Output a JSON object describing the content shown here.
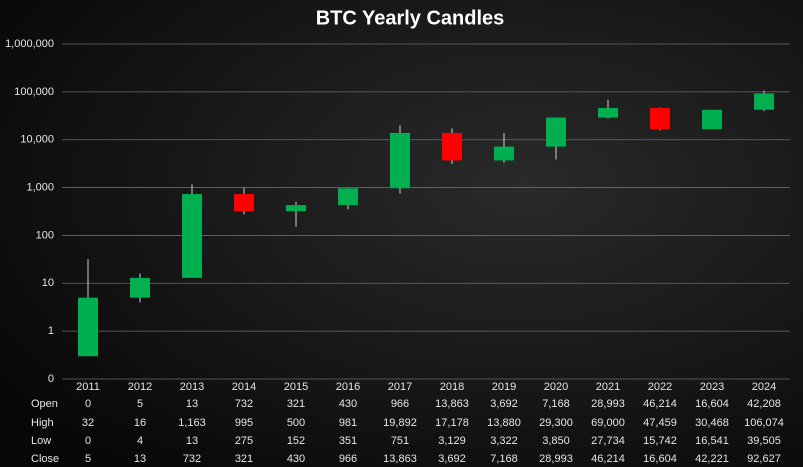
{
  "chart_data": {
    "type": "candlestick",
    "title": "BTC Yearly Candles",
    "categories": [
      "2011",
      "2012",
      "2013",
      "2014",
      "2015",
      "2016",
      "2017",
      "2018",
      "2019",
      "2020",
      "2021",
      "2022",
      "2023",
      "2024"
    ],
    "series": [
      {
        "name": "Open",
        "values": [
          0.3,
          5,
          13,
          732,
          321,
          430,
          966,
          13863,
          3692,
          7168,
          28993,
          46214,
          16604,
          42208
        ],
        "value_labels": [
          "0",
          "5",
          "13",
          "732",
          "321",
          "430",
          "966",
          "13,863",
          "3,692",
          "7,168",
          "28,993",
          "46,214",
          "16,604",
          "42,208"
        ]
      },
      {
        "name": "High",
        "values": [
          32,
          16,
          1163,
          995,
          500,
          981,
          19892,
          17178,
          13880,
          29300,
          69000,
          47459,
          30468,
          106074
        ],
        "value_labels": [
          "32",
          "16",
          "1,163",
          "995",
          "500",
          "981",
          "19,892",
          "17,178",
          "13,880",
          "29,300",
          "69,000",
          "47,459",
          "30,468",
          "106,074"
        ]
      },
      {
        "name": "Low",
        "values": [
          0.3,
          4,
          13,
          275,
          152,
          351,
          751,
          3129,
          3322,
          3850,
          27734,
          15742,
          16541,
          39505
        ],
        "value_labels": [
          "0",
          "4",
          "13",
          "275",
          "152",
          "351",
          "751",
          "3,129",
          "3,322",
          "3,850",
          "27,734",
          "15,742",
          "16,541",
          "39,505"
        ]
      },
      {
        "name": "Close",
        "values": [
          5,
          13,
          732,
          321,
          430,
          966,
          13863,
          3692,
          7168,
          28993,
          46214,
          16604,
          42221,
          92627
        ],
        "value_labels": [
          "5",
          "13",
          "732",
          "321",
          "430",
          "966",
          "13,863",
          "3,692",
          "7,168",
          "28,993",
          "46,214",
          "16,604",
          "42,221",
          "92,627"
        ]
      }
    ],
    "up_color": "#00b050",
    "down_color": "#ff0000",
    "ylog": true,
    "ylim": [
      0.1,
      1000000
    ],
    "yticks": [
      {
        "value": 0.1,
        "label": "0"
      },
      1,
      10,
      100,
      {
        "value": 1000,
        "label": "1,000"
      },
      {
        "value": 10000,
        "label": "10,000"
      },
      {
        "value": 100000,
        "label": "100,000"
      },
      {
        "value": 1000000,
        "label": "1,000,000"
      }
    ],
    "grid": true
  }
}
